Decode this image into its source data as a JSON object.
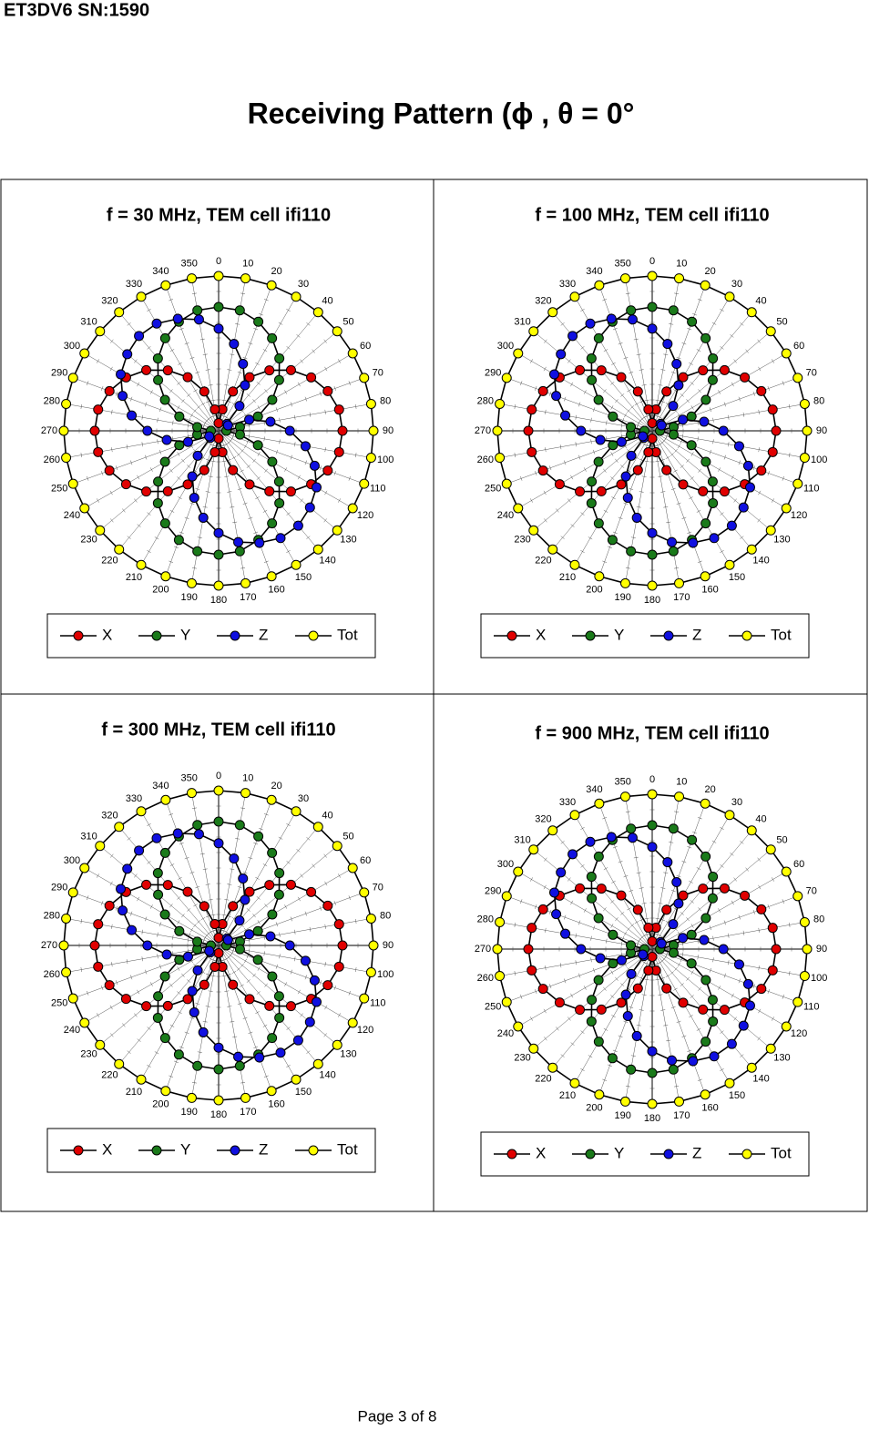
{
  "header": "ET3DV6 SN:1590",
  "title": "Receiving Pattern (ϕ , θ = 0°",
  "footer": "Page 3 of 8",
  "chart_data": [
    {
      "type": "polar",
      "title": "f = 30 MHz, TEM cell ifi110",
      "direction": "clockwise",
      "zero": "top",
      "rlim": [
        0,
        1
      ],
      "theta": [
        0,
        10,
        20,
        30,
        40,
        50,
        60,
        70,
        80,
        90,
        100,
        110,
        120,
        130,
        140,
        150,
        160,
        170,
        180,
        190,
        200,
        210,
        220,
        230,
        240,
        250,
        260,
        270,
        280,
        290,
        300,
        310,
        320,
        330,
        340,
        350
      ],
      "series": [
        {
          "name": "X",
          "color": "#e00000",
          "values": [
            0.05,
            0.14,
            0.27,
            0.4,
            0.51,
            0.61,
            0.69,
            0.75,
            0.79,
            0.8,
            0.79,
            0.75,
            0.69,
            0.61,
            0.51,
            0.4,
            0.27,
            0.14,
            0.05,
            0.14,
            0.27,
            0.4,
            0.51,
            0.61,
            0.69,
            0.75,
            0.79,
            0.8,
            0.79,
            0.75,
            0.69,
            0.61,
            0.51,
            0.4,
            0.27,
            0.14
          ]
        },
        {
          "name": "Y",
          "color": "#1a7a1a",
          "values": [
            0.8,
            0.79,
            0.75,
            0.69,
            0.61,
            0.51,
            0.4,
            0.27,
            0.14,
            0.05,
            0.14,
            0.27,
            0.4,
            0.51,
            0.61,
            0.69,
            0.75,
            0.79,
            0.8,
            0.79,
            0.75,
            0.69,
            0.61,
            0.51,
            0.4,
            0.27,
            0.14,
            0.05,
            0.14,
            0.27,
            0.4,
            0.51,
            0.61,
            0.69,
            0.75,
            0.79
          ]
        },
        {
          "name": "Z",
          "color": "#1010e0",
          "values": [
            0.66,
            0.57,
            0.46,
            0.34,
            0.21,
            0.07,
            0.07,
            0.21,
            0.34,
            0.46,
            0.57,
            0.66,
            0.73,
            0.77,
            0.8,
            0.8,
            0.77,
            0.73,
            0.66,
            0.57,
            0.46,
            0.34,
            0.21,
            0.07,
            0.07,
            0.21,
            0.34,
            0.46,
            0.57,
            0.66,
            0.73,
            0.77,
            0.8,
            0.8,
            0.77,
            0.73
          ]
        },
        {
          "name": "Tot",
          "color": "#ffff00",
          "values": [
            1,
            1,
            1,
            1,
            1,
            1,
            1,
            1,
            1,
            1,
            1,
            1,
            1,
            1,
            1,
            1,
            1,
            1,
            1,
            1,
            1,
            1,
            1,
            1,
            1,
            1,
            1,
            1,
            1,
            1,
            1,
            1,
            1,
            1,
            1,
            1
          ]
        }
      ]
    },
    {
      "type": "polar",
      "title": "f = 100 MHz, TEM cell ifi110",
      "direction": "clockwise",
      "zero": "top",
      "rlim": [
        0,
        1
      ],
      "theta": [
        0,
        10,
        20,
        30,
        40,
        50,
        60,
        70,
        80,
        90,
        100,
        110,
        120,
        130,
        140,
        150,
        160,
        170,
        180,
        190,
        200,
        210,
        220,
        230,
        240,
        250,
        260,
        270,
        280,
        290,
        300,
        310,
        320,
        330,
        340,
        350
      ],
      "series": [
        {
          "name": "X",
          "color": "#e00000",
          "values": [
            0.05,
            0.14,
            0.27,
            0.4,
            0.51,
            0.61,
            0.69,
            0.75,
            0.79,
            0.8,
            0.79,
            0.75,
            0.69,
            0.61,
            0.51,
            0.4,
            0.27,
            0.14,
            0.05,
            0.14,
            0.27,
            0.4,
            0.51,
            0.61,
            0.69,
            0.75,
            0.79,
            0.8,
            0.79,
            0.75,
            0.69,
            0.61,
            0.51,
            0.4,
            0.27,
            0.14
          ]
        },
        {
          "name": "Y",
          "color": "#1a7a1a",
          "values": [
            0.8,
            0.79,
            0.75,
            0.69,
            0.61,
            0.51,
            0.4,
            0.27,
            0.14,
            0.05,
            0.14,
            0.27,
            0.4,
            0.51,
            0.61,
            0.69,
            0.75,
            0.79,
            0.8,
            0.79,
            0.75,
            0.69,
            0.61,
            0.51,
            0.4,
            0.27,
            0.14,
            0.05,
            0.14,
            0.27,
            0.4,
            0.51,
            0.61,
            0.69,
            0.75,
            0.79
          ]
        },
        {
          "name": "Z",
          "color": "#1010e0",
          "values": [
            0.66,
            0.57,
            0.46,
            0.34,
            0.21,
            0.07,
            0.07,
            0.21,
            0.34,
            0.46,
            0.57,
            0.66,
            0.73,
            0.77,
            0.8,
            0.8,
            0.77,
            0.73,
            0.66,
            0.57,
            0.46,
            0.34,
            0.21,
            0.07,
            0.07,
            0.21,
            0.34,
            0.46,
            0.57,
            0.66,
            0.73,
            0.77,
            0.8,
            0.8,
            0.77,
            0.73
          ]
        },
        {
          "name": "Tot",
          "color": "#ffff00",
          "values": [
            1,
            1,
            1,
            1,
            1,
            1,
            1,
            1,
            1,
            1,
            1,
            1,
            1,
            1,
            1,
            1,
            1,
            1,
            1,
            1,
            1,
            1,
            1,
            1,
            1,
            1,
            1,
            1,
            1,
            1,
            1,
            1,
            1,
            1,
            1,
            1
          ]
        }
      ]
    },
    {
      "type": "polar",
      "title": "f = 300 MHz, TEM cell ifi110",
      "direction": "clockwise",
      "zero": "top",
      "rlim": [
        0,
        1
      ],
      "theta": [
        0,
        10,
        20,
        30,
        40,
        50,
        60,
        70,
        80,
        90,
        100,
        110,
        120,
        130,
        140,
        150,
        160,
        170,
        180,
        190,
        200,
        210,
        220,
        230,
        240,
        250,
        260,
        270,
        280,
        290,
        300,
        310,
        320,
        330,
        340,
        350
      ],
      "series": [
        {
          "name": "X",
          "color": "#e00000",
          "values": [
            0.05,
            0.14,
            0.27,
            0.4,
            0.51,
            0.61,
            0.69,
            0.75,
            0.79,
            0.8,
            0.79,
            0.75,
            0.69,
            0.61,
            0.51,
            0.4,
            0.27,
            0.14,
            0.05,
            0.14,
            0.27,
            0.4,
            0.51,
            0.61,
            0.69,
            0.75,
            0.79,
            0.8,
            0.79,
            0.75,
            0.69,
            0.61,
            0.51,
            0.4,
            0.27,
            0.14
          ]
        },
        {
          "name": "Y",
          "color": "#1a7a1a",
          "values": [
            0.8,
            0.79,
            0.75,
            0.69,
            0.61,
            0.51,
            0.4,
            0.27,
            0.14,
            0.05,
            0.14,
            0.27,
            0.4,
            0.51,
            0.61,
            0.69,
            0.75,
            0.79,
            0.8,
            0.79,
            0.75,
            0.69,
            0.61,
            0.51,
            0.4,
            0.27,
            0.14,
            0.05,
            0.14,
            0.27,
            0.4,
            0.51,
            0.61,
            0.69,
            0.75,
            0.79
          ]
        },
        {
          "name": "Z",
          "color": "#1010e0",
          "values": [
            0.66,
            0.57,
            0.46,
            0.34,
            0.21,
            0.07,
            0.07,
            0.21,
            0.34,
            0.46,
            0.57,
            0.66,
            0.73,
            0.77,
            0.8,
            0.8,
            0.77,
            0.73,
            0.66,
            0.57,
            0.46,
            0.34,
            0.21,
            0.07,
            0.07,
            0.21,
            0.34,
            0.46,
            0.57,
            0.66,
            0.73,
            0.77,
            0.8,
            0.8,
            0.77,
            0.73
          ]
        },
        {
          "name": "Tot",
          "color": "#ffff00",
          "values": [
            1,
            1,
            1,
            1,
            1,
            1,
            1,
            1,
            1,
            1,
            1,
            1,
            1,
            1,
            1,
            1,
            1,
            1,
            1,
            1,
            1,
            1,
            1,
            1,
            1,
            1,
            1,
            1,
            1,
            1,
            1,
            1,
            1,
            1,
            1,
            1
          ]
        }
      ]
    },
    {
      "type": "polar",
      "title": "f = 900 MHz, TEM cell ifi110",
      "direction": "clockwise",
      "zero": "top",
      "rlim": [
        0,
        1
      ],
      "theta": [
        0,
        10,
        20,
        30,
        40,
        50,
        60,
        70,
        80,
        90,
        100,
        110,
        120,
        130,
        140,
        150,
        160,
        170,
        180,
        190,
        200,
        210,
        220,
        230,
        240,
        250,
        260,
        270,
        280,
        290,
        300,
        310,
        320,
        330,
        340,
        350
      ],
      "series": [
        {
          "name": "X",
          "color": "#e00000",
          "values": [
            0.05,
            0.14,
            0.27,
            0.4,
            0.51,
            0.61,
            0.69,
            0.75,
            0.79,
            0.8,
            0.79,
            0.75,
            0.69,
            0.61,
            0.51,
            0.4,
            0.27,
            0.14,
            0.05,
            0.14,
            0.27,
            0.4,
            0.51,
            0.61,
            0.69,
            0.75,
            0.79,
            0.8,
            0.79,
            0.75,
            0.69,
            0.61,
            0.51,
            0.4,
            0.27,
            0.14
          ]
        },
        {
          "name": "Y",
          "color": "#1a7a1a",
          "values": [
            0.8,
            0.79,
            0.75,
            0.69,
            0.61,
            0.51,
            0.4,
            0.27,
            0.14,
            0.05,
            0.14,
            0.27,
            0.4,
            0.51,
            0.61,
            0.69,
            0.75,
            0.79,
            0.8,
            0.79,
            0.75,
            0.69,
            0.61,
            0.51,
            0.4,
            0.27,
            0.14,
            0.05,
            0.14,
            0.27,
            0.4,
            0.51,
            0.61,
            0.69,
            0.75,
            0.79
          ]
        },
        {
          "name": "Z",
          "color": "#1010e0",
          "values": [
            0.66,
            0.57,
            0.46,
            0.34,
            0.21,
            0.07,
            0.07,
            0.21,
            0.34,
            0.46,
            0.57,
            0.66,
            0.73,
            0.77,
            0.8,
            0.8,
            0.77,
            0.73,
            0.66,
            0.57,
            0.46,
            0.34,
            0.21,
            0.07,
            0.07,
            0.21,
            0.34,
            0.46,
            0.57,
            0.66,
            0.73,
            0.77,
            0.8,
            0.8,
            0.77,
            0.73
          ]
        },
        {
          "name": "Tot",
          "color": "#ffff00",
          "values": [
            1,
            1,
            1,
            1,
            1,
            1,
            1,
            1,
            1,
            1,
            1,
            1,
            1,
            1,
            1,
            1,
            1,
            1,
            1,
            1,
            1,
            1,
            1,
            1,
            1,
            1,
            1,
            1,
            1,
            1,
            1,
            1,
            1,
            1,
            1,
            1
          ]
        }
      ]
    }
  ]
}
